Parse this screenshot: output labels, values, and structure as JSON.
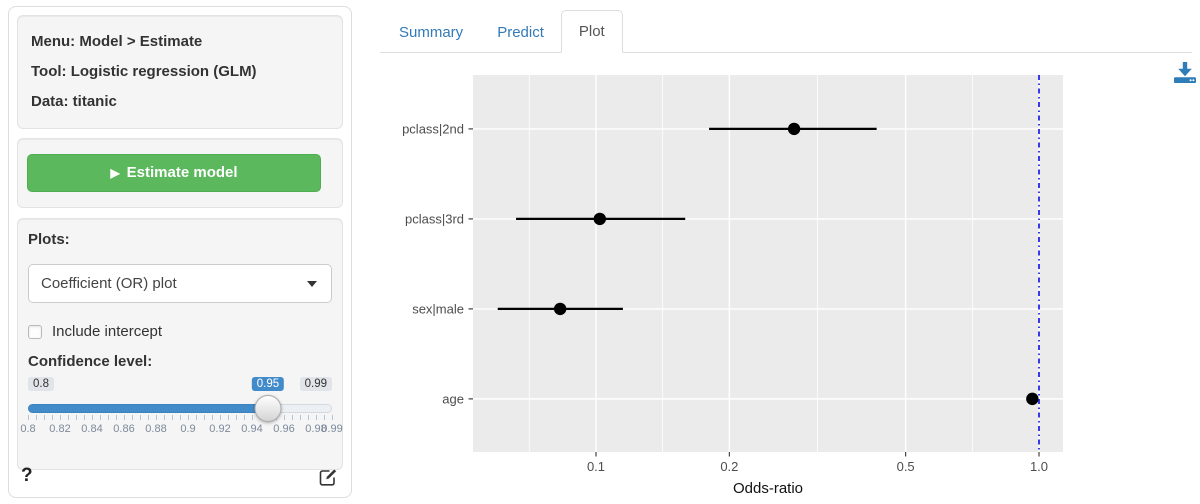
{
  "sidebar": {
    "info": {
      "menu": "Menu: Model > Estimate",
      "tool": "Tool: Logistic regression (GLM)",
      "data": "Data: titanic"
    },
    "estimate_button": {
      "label": "Estimate model",
      "play_icon": "▶"
    },
    "plots": {
      "label": "Plots:",
      "selected": "Coefficient (OR) plot"
    },
    "include_intercept": {
      "label": "Include intercept",
      "checked": false
    },
    "confidence": {
      "label": "Confidence level:",
      "min": 0.8,
      "max": 0.99,
      "value": 0.95,
      "step": 0.005,
      "min_label": "0.8",
      "value_label": "0.95",
      "max_label": "0.99",
      "tick_labels": [
        "0.8",
        "0.82",
        "0.84",
        "0.86",
        "0.88",
        "0.9",
        "0.92",
        "0.94",
        "0.96",
        "0.98",
        "0.99"
      ],
      "accent": "#428bca"
    },
    "help_label": "?"
  },
  "tabs": {
    "items": [
      {
        "label": "Summary",
        "active": false
      },
      {
        "label": "Predict",
        "active": false
      },
      {
        "label": "Plot",
        "active": true
      }
    ]
  },
  "download_icon_color": "#2e7cb8",
  "chart_data": {
    "type": "scatter",
    "subtype": "coefficient-odds-ratio-dot-plot-with-error-bars",
    "title": "",
    "xlabel": "Odds-ratio",
    "ylabel": "",
    "x_scale": "log10",
    "xlim": [
      0.053,
      1.15
    ],
    "grid": true,
    "legend": "none",
    "panel_bg": "#EBEBEB",
    "grid_color": "#FFFFFF",
    "x_ticks": [
      {
        "v": 0.1,
        "label": "0.1"
      },
      {
        "v": 0.2,
        "label": "0.2"
      },
      {
        "v": 0.5,
        "label": "0.5"
      },
      {
        "v": 1.0,
        "label": "1.0"
      }
    ],
    "x_minor_gridlines": [
      0.0707,
      0.1414,
      0.3162,
      0.7071
    ],
    "reference_line": {
      "x": 1.0,
      "style": "dotdash",
      "color": "#2626E8"
    },
    "categories": [
      "pclass|2nd",
      "pclass|3rd",
      "sex|male",
      "age"
    ],
    "points": [
      {
        "label": "pclass|2nd",
        "or": 0.28,
        "ci_low": 0.18,
        "ci_high": 0.43
      },
      {
        "label": "pclass|3rd",
        "or": 0.102,
        "ci_low": 0.066,
        "ci_high": 0.159
      },
      {
        "label": "sex|male",
        "or": 0.083,
        "ci_low": 0.06,
        "ci_high": 0.115
      },
      {
        "label": "age",
        "or": 0.966,
        "ci_low": 0.958,
        "ci_high": 0.975
      }
    ]
  }
}
